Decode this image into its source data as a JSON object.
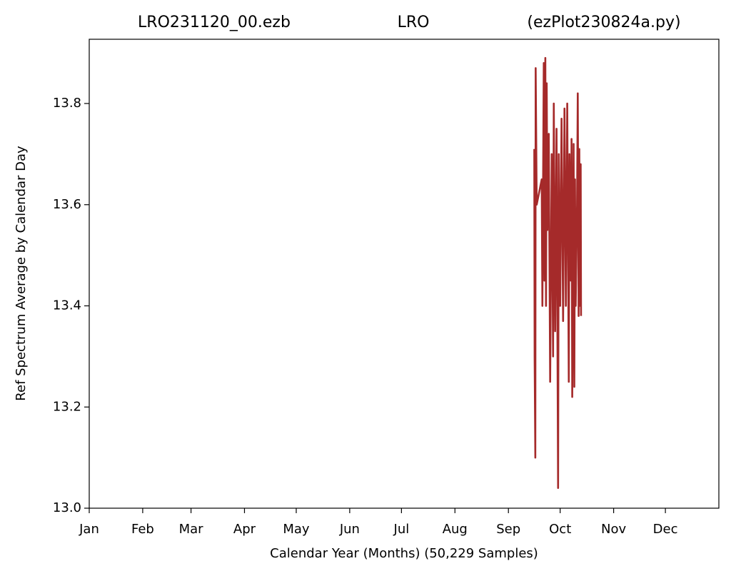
{
  "chart_data": {
    "type": "line",
    "title": [
      "LRO231120_00.ezb",
      "LRO",
      "(ezPlot230824a.py)"
    ],
    "xlabel": "Calendar Year (Months) (50,229 Samples)",
    "ylabel": "Ref Spectrum Average by Calendar Day",
    "color": "#a52a2a",
    "x": [
      258.0,
      258.2,
      258.6,
      258.8,
      259.4,
      262.3,
      262.7,
      263.5,
      263.9,
      264.4,
      264.8,
      265.2,
      265.6,
      266.4,
      267.2,
      268.1,
      268.9,
      269.3,
      270.1,
      270.9,
      271.8,
      272.2,
      273.0,
      273.8,
      274.7,
      275.5,
      276.3,
      277.1,
      278.0,
      278.4,
      279.2,
      279.6,
      280.0,
      280.8,
      281.2,
      281.6,
      282.0,
      282.8,
      283.2,
      283.7,
      284.1,
      284.5,
      284.9,
      285.1
    ],
    "values": [
      13.71,
      13.3,
      13.1,
      13.87,
      13.6,
      13.65,
      13.4,
      13.88,
      13.45,
      13.89,
      13.4,
      13.84,
      13.55,
      13.74,
      13.25,
      13.7,
      13.3,
      13.8,
      13.35,
      13.75,
      13.04,
      13.7,
      13.4,
      13.77,
      13.37,
      13.79,
      13.4,
      13.8,
      13.25,
      13.7,
      13.45,
      13.73,
      13.22,
      13.72,
      13.24,
      13.65,
      13.4,
      13.6,
      13.82,
      13.38,
      13.71,
      13.4,
      13.68,
      13.38
    ],
    "xlim": [
      0,
      365
    ],
    "xticks": [
      {
        "value": 0,
        "label": "Jan"
      },
      {
        "value": 31,
        "label": "Feb"
      },
      {
        "value": 59,
        "label": "Mar"
      },
      {
        "value": 90,
        "label": "Apr"
      },
      {
        "value": 120,
        "label": "May"
      },
      {
        "value": 151,
        "label": "Jun"
      },
      {
        "value": 181,
        "label": "Jul"
      },
      {
        "value": 212,
        "label": "Aug"
      },
      {
        "value": 243,
        "label": "Sep"
      },
      {
        "value": 273,
        "label": "Oct"
      },
      {
        "value": 304,
        "label": "Nov"
      },
      {
        "value": 334,
        "label": "Dec"
      }
    ],
    "ylim": [
      13.0,
      13.927
    ],
    "yticks": [
      {
        "value": 13.0,
        "label": "13.0"
      },
      13.2,
      13.4,
      13.6,
      13.8
    ],
    "grid": false
  }
}
